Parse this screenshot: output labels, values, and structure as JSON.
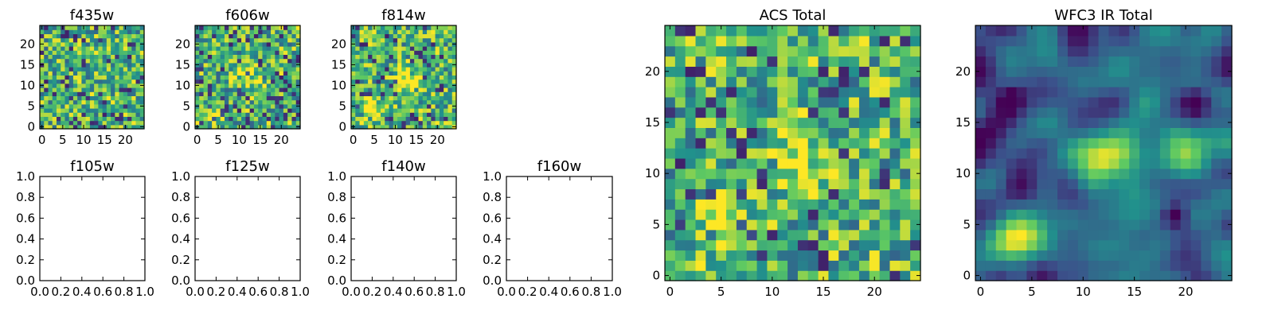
{
  "colormap": {
    "name": "viridis",
    "stops": [
      "#440154",
      "#3b528b",
      "#21918c",
      "#5ec962",
      "#fde725"
    ]
  },
  "chart_data": [
    {
      "type": "heatmap",
      "title": "f435w",
      "grid_size": 25,
      "xlim": [
        0,
        24
      ],
      "ylim": [
        0,
        24
      ],
      "x_ticks": [
        "0",
        "5",
        "10",
        "15",
        "20"
      ],
      "y_ticks": [
        "0",
        "5",
        "10",
        "15",
        "20"
      ],
      "vmin": 0,
      "vmax": 1,
      "pattern": "noise",
      "sources": []
    },
    {
      "type": "heatmap",
      "title": "f606w",
      "grid_size": 25,
      "xlim": [
        0,
        24
      ],
      "ylim": [
        0,
        24
      ],
      "x_ticks": [
        "0",
        "5",
        "10",
        "15",
        "20"
      ],
      "y_ticks": [
        "0",
        "5",
        "10",
        "15",
        "20"
      ],
      "vmin": 0,
      "vmax": 1,
      "pattern": "noise",
      "sources": [
        {
          "x": 12,
          "y": 11,
          "peak": 0.25
        },
        {
          "x": 4,
          "y": 4,
          "peak": 0.2
        }
      ]
    },
    {
      "type": "heatmap",
      "title": "f814w",
      "grid_size": 25,
      "xlim": [
        0,
        24
      ],
      "ylim": [
        0,
        24
      ],
      "x_ticks": [
        "0",
        "5",
        "10",
        "15",
        "20"
      ],
      "y_ticks": [
        "0",
        "5",
        "10",
        "15",
        "20"
      ],
      "vmin": 0,
      "vmax": 1,
      "pattern": "noise",
      "sources": [
        {
          "x": 13,
          "y": 12,
          "peak": 0.5
        },
        {
          "x": 4,
          "y": 4,
          "peak": 0.5
        }
      ]
    },
    {
      "type": "empty",
      "title": "f105w",
      "xlim": [
        0,
        1
      ],
      "ylim": [
        0,
        1
      ],
      "x_ticks": [
        "0.0",
        "0.2",
        "0.4",
        "0.6",
        "0.8",
        "1.0"
      ],
      "y_ticks": [
        "0.0",
        "0.2",
        "0.4",
        "0.6",
        "0.8",
        "1.0"
      ]
    },
    {
      "type": "empty",
      "title": "f125w",
      "xlim": [
        0,
        1
      ],
      "ylim": [
        0,
        1
      ],
      "x_ticks": [
        "0.0",
        "0.2",
        "0.4",
        "0.6",
        "0.8",
        "1.0"
      ],
      "y_ticks": [
        "0.0",
        "0.2",
        "0.4",
        "0.6",
        "0.8",
        "1.0"
      ]
    },
    {
      "type": "empty",
      "title": "f140w",
      "xlim": [
        0,
        1
      ],
      "ylim": [
        0,
        1
      ],
      "x_ticks": [
        "0.0",
        "0.2",
        "0.4",
        "0.6",
        "0.8",
        "1.0"
      ],
      "y_ticks": [
        "0.0",
        "0.2",
        "0.4",
        "0.6",
        "0.8",
        "1.0"
      ]
    },
    {
      "type": "empty",
      "title": "f160w",
      "xlim": [
        0,
        1
      ],
      "ylim": [
        0,
        1
      ],
      "x_ticks": [
        "0.0",
        "0.2",
        "0.4",
        "0.6",
        "0.8",
        "1.0"
      ],
      "y_ticks": [
        "0.0",
        "0.2",
        "0.4",
        "0.6",
        "0.8",
        "1.0"
      ]
    },
    {
      "type": "heatmap",
      "title": "ACS Total",
      "grid_size": 25,
      "xlim": [
        0,
        24
      ],
      "ylim": [
        0,
        24
      ],
      "x_ticks": [
        "0",
        "5",
        "10",
        "15",
        "20"
      ],
      "y_ticks": [
        "0",
        "5",
        "10",
        "15",
        "20"
      ],
      "vmin": 0,
      "vmax": 1,
      "pattern": "noise",
      "sources": [
        {
          "x": 13,
          "y": 12,
          "peak": 0.3
        },
        {
          "x": 5,
          "y": 5,
          "peak": 0.3
        }
      ]
    },
    {
      "type": "heatmap",
      "title": "WFC3 IR Total",
      "grid_size": 25,
      "xlim": [
        0,
        24
      ],
      "ylim": [
        0,
        24
      ],
      "x_ticks": [
        "0",
        "5",
        "10",
        "15",
        "20"
      ],
      "y_ticks": [
        "0",
        "5",
        "10",
        "15",
        "20"
      ],
      "vmin": 0,
      "vmax": 1,
      "pattern": "smooth",
      "sources": [
        {
          "x": 12,
          "y": 11.5,
          "peak": 0.6
        },
        {
          "x": 4.5,
          "y": 3.5,
          "peak": 0.6
        },
        {
          "x": 19.5,
          "y": 12,
          "peak": 0.45
        }
      ],
      "holes": [
        {
          "x": 19,
          "y": 6,
          "depth": 0.55
        },
        {
          "x": 21,
          "y": 17,
          "depth": 0.3
        },
        {
          "x": 3,
          "y": 17.5,
          "depth": 0.3
        }
      ]
    }
  ]
}
